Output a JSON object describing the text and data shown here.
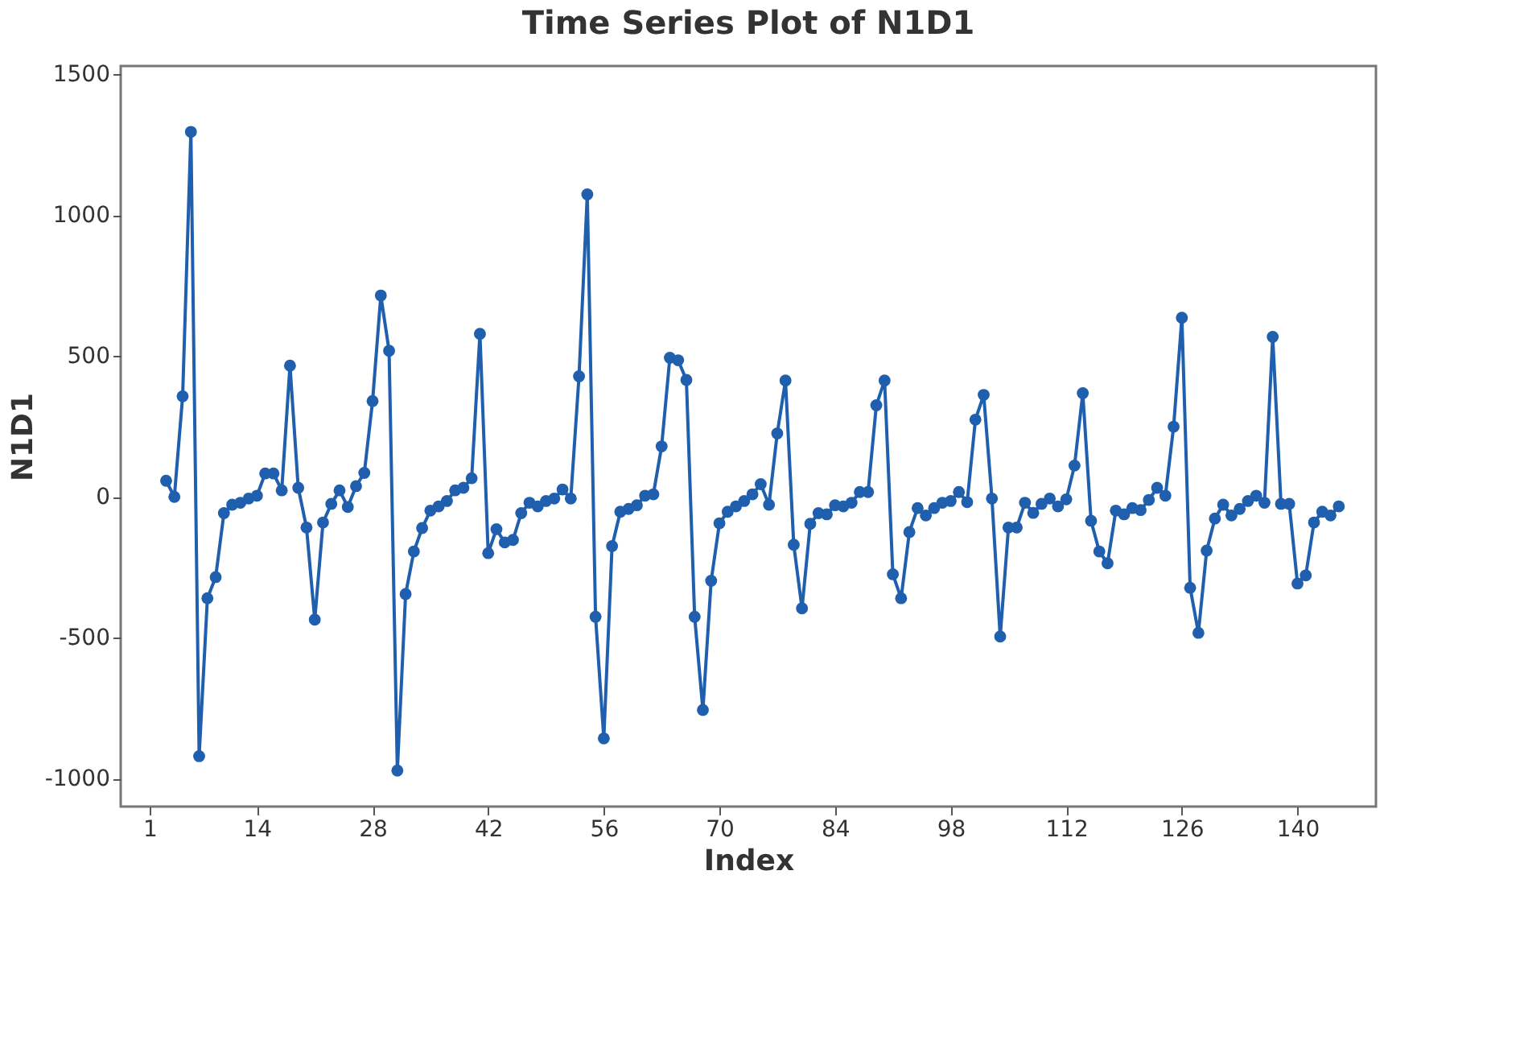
{
  "chart_data": {
    "type": "line",
    "title": "Time Series Plot of N1D1",
    "xlabel": "Index",
    "ylabel": "N1D1",
    "x": [
      3,
      4,
      5,
      6,
      7,
      8,
      9,
      10,
      11,
      12,
      13,
      14,
      15,
      16,
      17,
      18,
      19,
      20,
      21,
      22,
      23,
      24,
      25,
      26,
      27,
      28,
      29,
      30,
      31,
      32,
      33,
      34,
      35,
      36,
      37,
      38,
      39,
      40,
      41,
      42,
      43,
      44,
      45,
      46,
      47,
      48,
      49,
      50,
      51,
      52,
      53,
      54,
      55,
      56,
      57,
      58,
      59,
      60,
      61,
      62,
      63,
      64,
      65,
      66,
      67,
      68,
      69,
      70,
      71,
      72,
      73,
      74,
      75,
      76,
      77,
      78,
      79,
      80,
      81,
      82,
      83,
      84,
      85,
      86,
      87,
      88,
      89,
      90,
      91,
      92,
      93,
      94,
      95,
      96,
      97,
      98,
      99,
      100,
      101,
      102,
      103,
      104,
      105,
      106,
      107,
      108,
      109,
      110,
      111,
      112,
      113,
      114,
      115,
      116,
      117,
      118,
      119,
      120,
      121,
      122,
      123,
      124,
      125,
      126,
      127,
      128,
      129,
      130,
      131,
      132,
      133,
      134,
      135,
      136,
      137,
      138,
      139,
      140,
      141,
      142,
      143,
      144,
      145
    ],
    "series": [
      {
        "color": "#1f5fae",
        "values": [
          57,
          0,
          357,
          1296,
          -921,
          -360,
          -285,
          -58,
          -28,
          -21,
          -6,
          4,
          83,
          83,
          23,
          466,
          32,
          -109,
          -436,
          -91,
          -25,
          23,
          -36,
          38,
          85,
          340,
          715,
          519,
          -972,
          -345,
          -194,
          -111,
          -49,
          -34,
          -15,
          23,
          32,
          66,
          579,
          -200,
          -115,
          -162,
          -153,
          -58,
          -21,
          -34,
          -15,
          -6,
          26,
          -6,
          428,
          1074,
          -426,
          -858,
          -175,
          -53,
          -43,
          -30,
          4,
          9,
          179,
          494,
          485,
          415,
          -426,
          -757,
          -298,
          -94,
          -53,
          -34,
          -15,
          9,
          45,
          -28,
          225,
          413,
          -170,
          -396,
          -96,
          -58,
          -62,
          -30,
          -34,
          -21,
          17,
          17,
          325,
          413,
          -275,
          -360,
          -125,
          -40,
          -66,
          -40,
          -21,
          -15,
          17,
          -19,
          274,
          362,
          -6,
          -496,
          -109,
          -109,
          -21,
          -57,
          -25,
          -6,
          -34,
          -9,
          111,
          368,
          -85,
          -194,
          -236,
          -49,
          -62,
          -40,
          -47,
          -11,
          32,
          4,
          249,
          636,
          -323,
          -483,
          -191,
          -77,
          -28,
          -66,
          -43,
          -15,
          4,
          -21,
          568,
          -25,
          -25,
          -308,
          -279,
          -91,
          -53,
          -66,
          -34
        ]
      }
    ],
    "xlim": [
      -2.5,
      149.5
    ],
    "xticks": [
      1,
      14,
      28,
      42,
      56,
      70,
      84,
      98,
      112,
      126,
      140
    ],
    "ylim": [
      -1100,
      1530
    ],
    "yticks": [
      -1000,
      -500,
      0,
      500,
      1000,
      1500
    ],
    "marker": "circle",
    "line_style": "solid",
    "grid": false
  }
}
